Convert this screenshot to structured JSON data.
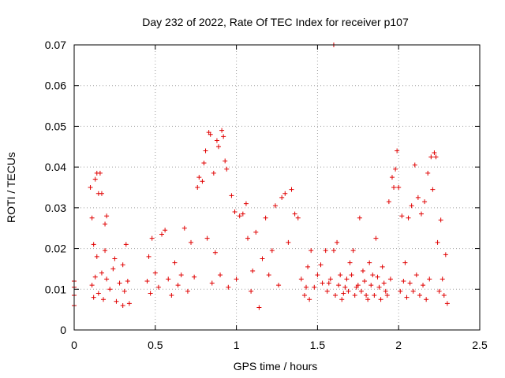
{
  "chart_data": {
    "type": "scatter",
    "title": "Day 232 of 2022, Rate Of TEC Index for receiver p107",
    "xlabel": "GPS time / hours",
    "ylabel": "ROTI / TECUs",
    "xlim": [
      0,
      2.5
    ],
    "ylim": [
      0,
      0.07
    ],
    "xticks": [
      0,
      0.5,
      1,
      1.5,
      2,
      2.5
    ],
    "xtick_labels": [
      "0",
      "0.5",
      "1",
      "1.5",
      "2",
      "2.5"
    ],
    "yticks": [
      0,
      0.01,
      0.02,
      0.03,
      0.04,
      0.05,
      0.06,
      0.07
    ],
    "ytick_labels": [
      "0",
      "0.01",
      "0.02",
      "0.03",
      "0.04",
      "0.05",
      "0.06",
      "0.07"
    ],
    "grid": true,
    "marker": "plus",
    "color": "#e00000",
    "series": [
      {
        "values": [
          [
            0.0,
            0.012
          ],
          [
            0.0,
            0.0105
          ],
          [
            0.0,
            0.0085
          ],
          [
            0.0,
            0.006
          ],
          [
            0.1,
            0.035
          ],
          [
            0.11,
            0.0275
          ],
          [
            0.12,
            0.021
          ],
          [
            0.13,
            0.037
          ],
          [
            0.14,
            0.0385
          ],
          [
            0.15,
            0.0335
          ],
          [
            0.16,
            0.0385
          ],
          [
            0.17,
            0.0335
          ],
          [
            0.19,
            0.026
          ],
          [
            0.2,
            0.028
          ],
          [
            0.11,
            0.011
          ],
          [
            0.12,
            0.008
          ],
          [
            0.13,
            0.013
          ],
          [
            0.15,
            0.009
          ],
          [
            0.17,
            0.014
          ],
          [
            0.18,
            0.0075
          ],
          [
            0.2,
            0.0125
          ],
          [
            0.22,
            0.01
          ],
          [
            0.24,
            0.015
          ],
          [
            0.26,
            0.007
          ],
          [
            0.28,
            0.0115
          ],
          [
            0.3,
            0.006
          ],
          [
            0.31,
            0.0095
          ],
          [
            0.33,
            0.012
          ],
          [
            0.34,
            0.0065
          ],
          [
            0.14,
            0.018
          ],
          [
            0.19,
            0.0195
          ],
          [
            0.25,
            0.0175
          ],
          [
            0.3,
            0.016
          ],
          [
            0.32,
            0.021
          ],
          [
            0.45,
            0.012
          ],
          [
            0.46,
            0.018
          ],
          [
            0.47,
            0.009
          ],
          [
            0.48,
            0.0225
          ],
          [
            0.5,
            0.014
          ],
          [
            0.52,
            0.0105
          ],
          [
            0.54,
            0.0235
          ],
          [
            0.56,
            0.0245
          ],
          [
            0.58,
            0.0125
          ],
          [
            0.6,
            0.0085
          ],
          [
            0.62,
            0.0165
          ],
          [
            0.64,
            0.011
          ],
          [
            0.66,
            0.0135
          ],
          [
            0.68,
            0.025
          ],
          [
            0.7,
            0.0095
          ],
          [
            0.72,
            0.0215
          ],
          [
            0.74,
            0.013
          ],
          [
            0.76,
            0.035
          ],
          [
            0.77,
            0.0375
          ],
          [
            0.79,
            0.0365
          ],
          [
            0.8,
            0.041
          ],
          [
            0.81,
            0.044
          ],
          [
            0.83,
            0.0485
          ],
          [
            0.84,
            0.048
          ],
          [
            0.86,
            0.0385
          ],
          [
            0.88,
            0.0465
          ],
          [
            0.89,
            0.045
          ],
          [
            0.91,
            0.049
          ],
          [
            0.92,
            0.0475
          ],
          [
            0.93,
            0.0415
          ],
          [
            0.94,
            0.0395
          ],
          [
            0.82,
            0.0225
          ],
          [
            0.85,
            0.0115
          ],
          [
            0.87,
            0.019
          ],
          [
            0.9,
            0.0135
          ],
          [
            0.95,
            0.0105
          ],
          [
            0.97,
            0.033
          ],
          [
            0.99,
            0.029
          ],
          [
            1.0,
            0.0125
          ],
          [
            1.02,
            0.028
          ],
          [
            1.04,
            0.0285
          ],
          [
            1.06,
            0.031
          ],
          [
            1.07,
            0.0225
          ],
          [
            1.09,
            0.0095
          ],
          [
            1.1,
            0.0145
          ],
          [
            1.12,
            0.024
          ],
          [
            1.14,
            0.0055
          ],
          [
            1.16,
            0.0175
          ],
          [
            1.18,
            0.0275
          ],
          [
            1.2,
            0.0135
          ],
          [
            1.22,
            0.0195
          ],
          [
            1.24,
            0.0305
          ],
          [
            1.26,
            0.011
          ],
          [
            1.28,
            0.0325
          ],
          [
            1.3,
            0.0335
          ],
          [
            1.32,
            0.0215
          ],
          [
            1.34,
            0.0345
          ],
          [
            1.36,
            0.0285
          ],
          [
            1.38,
            0.0275
          ],
          [
            1.4,
            0.0125
          ],
          [
            1.42,
            0.0085
          ],
          [
            1.44,
            0.0155
          ],
          [
            1.46,
            0.0195
          ],
          [
            1.48,
            0.0105
          ],
          [
            1.5,
            0.0135
          ],
          [
            1.52,
            0.016
          ],
          [
            1.55,
            0.0195
          ],
          [
            1.57,
            0.0115
          ],
          [
            1.6,
            0.0195
          ],
          [
            1.62,
            0.0215
          ],
          [
            1.64,
            0.0135
          ],
          [
            1.66,
            0.009
          ],
          [
            1.68,
            0.0125
          ],
          [
            1.7,
            0.0165
          ],
          [
            1.72,
            0.0195
          ],
          [
            1.74,
            0.0105
          ],
          [
            1.76,
            0.0275
          ],
          [
            1.78,
            0.0145
          ],
          [
            1.8,
            0.0085
          ],
          [
            1.82,
            0.0165
          ],
          [
            1.84,
            0.0135
          ],
          [
            1.86,
            0.0225
          ],
          [
            1.88,
            0.0105
          ],
          [
            1.9,
            0.0155
          ],
          [
            1.92,
            0.0095
          ],
          [
            1.94,
            0.0315
          ],
          [
            1.96,
            0.0375
          ],
          [
            1.97,
            0.035
          ],
          [
            1.98,
            0.0395
          ],
          [
            1.99,
            0.044
          ],
          [
            2.0,
            0.035
          ],
          [
            2.02,
            0.028
          ],
          [
            2.04,
            0.0165
          ],
          [
            2.06,
            0.0275
          ],
          [
            2.08,
            0.0305
          ],
          [
            2.1,
            0.0405
          ],
          [
            2.12,
            0.0325
          ],
          [
            2.14,
            0.0285
          ],
          [
            2.16,
            0.0315
          ],
          [
            2.18,
            0.0385
          ],
          [
            2.2,
            0.0425
          ],
          [
            2.21,
            0.0345
          ],
          [
            2.22,
            0.0435
          ],
          [
            2.23,
            0.0425
          ],
          [
            2.24,
            0.0215
          ],
          [
            2.26,
            0.027
          ],
          [
            2.27,
            0.0125
          ],
          [
            2.28,
            0.0085
          ],
          [
            2.29,
            0.0185
          ],
          [
            2.3,
            0.0065
          ],
          [
            1.43,
            0.0105
          ],
          [
            1.45,
            0.0075
          ],
          [
            1.53,
            0.0115
          ],
          [
            1.56,
            0.0095
          ],
          [
            1.58,
            0.0125
          ],
          [
            1.61,
            0.0085
          ],
          [
            1.63,
            0.011
          ],
          [
            1.65,
            0.0075
          ],
          [
            1.67,
            0.0105
          ],
          [
            1.69,
            0.0095
          ],
          [
            1.71,
            0.0135
          ],
          [
            1.73,
            0.0085
          ],
          [
            1.75,
            0.011
          ],
          [
            1.77,
            0.0095
          ],
          [
            1.79,
            0.012
          ],
          [
            1.81,
            0.0075
          ],
          [
            1.83,
            0.011
          ],
          [
            1.85,
            0.0085
          ],
          [
            1.87,
            0.013
          ],
          [
            1.89,
            0.0075
          ],
          [
            1.91,
            0.0115
          ],
          [
            1.93,
            0.0085
          ],
          [
            1.95,
            0.0125
          ],
          [
            2.01,
            0.0095
          ],
          [
            2.03,
            0.012
          ],
          [
            2.05,
            0.008
          ],
          [
            2.07,
            0.0115
          ],
          [
            2.09,
            0.0095
          ],
          [
            2.11,
            0.0135
          ],
          [
            2.13,
            0.0085
          ],
          [
            2.15,
            0.011
          ],
          [
            2.17,
            0.0075
          ],
          [
            2.19,
            0.0125
          ],
          [
            2.25,
            0.0095
          ],
          [
            1.6,
            0.07
          ]
        ]
      }
    ]
  }
}
